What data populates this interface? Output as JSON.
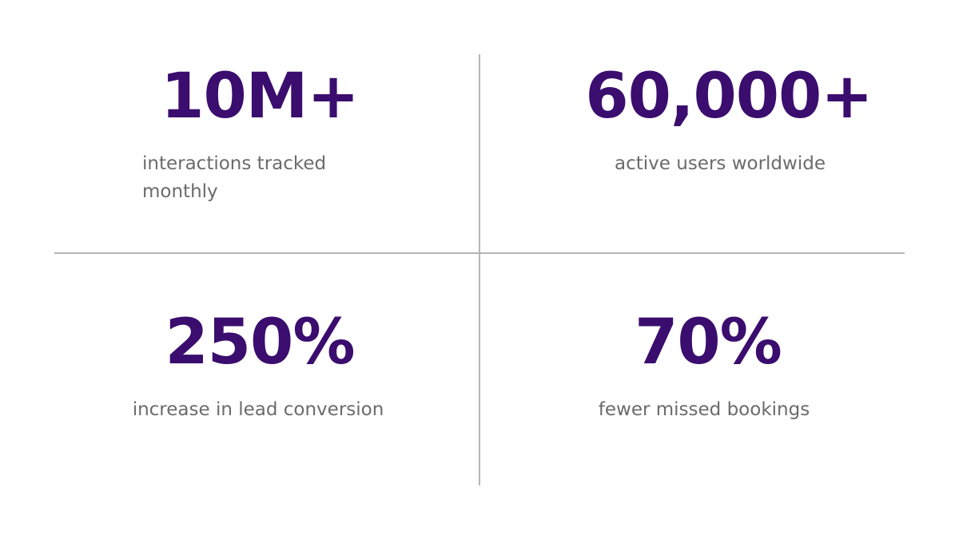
{
  "stats": [
    {
      "value": "10M+",
      "label": "interactions tracked monthly"
    },
    {
      "value": "60,000+",
      "label": "active users worldwide"
    },
    {
      "value": "250%",
      "label": "increase in lead conversion"
    },
    {
      "value": "70%",
      "label": "fewer missed bookings"
    }
  ]
}
